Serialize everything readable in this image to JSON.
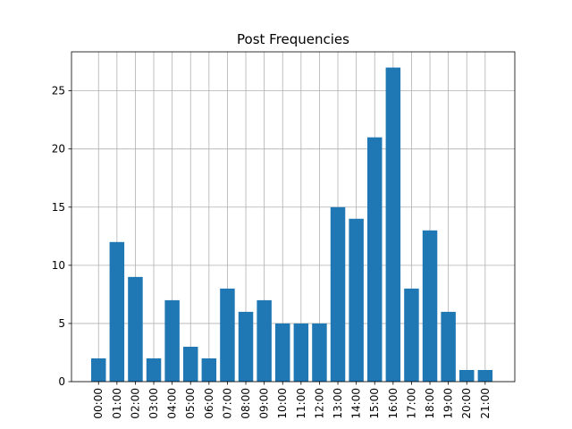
{
  "chart_data": {
    "type": "bar",
    "title": "Post Frequencies",
    "xlabel": "",
    "ylabel": "",
    "categories": [
      "00:00",
      "01:00",
      "02:00",
      "03:00",
      "04:00",
      "05:00",
      "06:00",
      "07:00",
      "08:00",
      "09:00",
      "10:00",
      "11:00",
      "12:00",
      "13:00",
      "14:00",
      "15:00",
      "16:00",
      "17:00",
      "18:00",
      "19:00",
      "20:00",
      "21:00"
    ],
    "values": [
      2,
      12,
      9,
      2,
      7,
      3,
      2,
      8,
      6,
      7,
      5,
      5,
      5,
      15,
      14,
      21,
      27,
      8,
      13,
      6,
      1,
      1
    ],
    "ylim": [
      0,
      28.35
    ],
    "yticks": [
      0,
      5,
      10,
      15,
      20,
      25
    ],
    "grid": true,
    "bar_color": "#1f77b4",
    "x_tick_rotation": 90
  }
}
